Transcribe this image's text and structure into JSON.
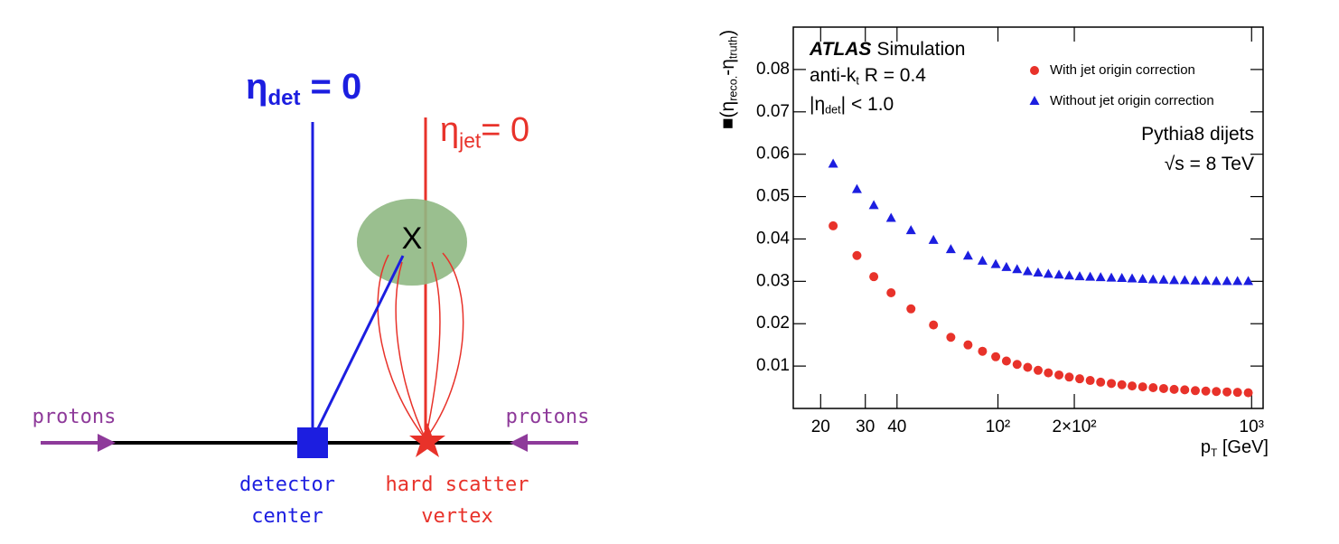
{
  "diagram": {
    "eta_det": [
      "η",
      "det",
      " = 0"
    ],
    "eta_jet": [
      "η",
      "jet",
      "= 0"
    ],
    "jet_marker": "X",
    "protons_left": "protons",
    "protons_right": "protons",
    "detector_center": [
      "detector",
      "center"
    ],
    "hard_scatter_vertex": [
      "hard scatter",
      "vertex"
    ]
  },
  "chart_data": {
    "type": "scatter",
    "experiment": "ATLAS",
    "experiment_label": "Simulation",
    "annotations": [
      [
        "anti-k",
        "t",
        " R = 0.4"
      ],
      [
        "|η",
        "det",
        "| < 1.0"
      ],
      [
        "Pythia8 dijets"
      ],
      [
        "√s = 8 TeV"
      ]
    ],
    "xlabel": [
      "p",
      "T",
      " [GeV]"
    ],
    "ylabel": [
      "■(η",
      "reco.",
      "-η",
      "truth",
      ")"
    ],
    "x": [
      22.4,
      27.8,
      32.4,
      37.9,
      45.4,
      55.7,
      65.2,
      76.2,
      86.9,
      98,
      108,
      119,
      131,
      144,
      158,
      174,
      191,
      210,
      231,
      254,
      280,
      308,
      338,
      372,
      409,
      450,
      495,
      545,
      600,
      660,
      726,
      800,
      880,
      970
    ],
    "series": [
      {
        "name": "With jet origin correction",
        "color": "#e8322a",
        "marker": "circle",
        "values": [
          0.0431,
          0.0361,
          0.0311,
          0.0273,
          0.0235,
          0.0197,
          0.0168,
          0.015,
          0.0135,
          0.0122,
          0.0112,
          0.0104,
          0.0097,
          0.009,
          0.0084,
          0.0079,
          0.0074,
          0.007,
          0.0066,
          0.0062,
          0.0059,
          0.0056,
          0.0053,
          0.0051,
          0.0049,
          0.0047,
          0.0045,
          0.0044,
          0.0042,
          0.0041,
          0.004,
          0.0039,
          0.0038,
          0.0037
        ]
      },
      {
        "name": "Without jet origin correction",
        "color": "#1c1ee0",
        "marker": "triangle",
        "values": [
          0.0577,
          0.0517,
          0.0479,
          0.0449,
          0.042,
          0.0397,
          0.0375,
          0.036,
          0.0348,
          0.034,
          0.0333,
          0.0328,
          0.0323,
          0.032,
          0.0317,
          0.0315,
          0.0313,
          0.0311,
          0.031,
          0.0309,
          0.0308,
          0.0307,
          0.0306,
          0.0305,
          0.0304,
          0.0303,
          0.0302,
          0.0302,
          0.0301,
          0.0301,
          0.03,
          0.03,
          0.03,
          0.03
        ]
      }
    ],
    "xscale": "log",
    "xlim": [
      15.6,
      1110
    ],
    "ylim": [
      0,
      0.09
    ],
    "xticks": [
      20,
      30,
      40,
      {
        "value": 100,
        "label": "10²"
      },
      {
        "value": 200,
        "label": "2×10²"
      },
      {
        "value": 1000,
        "label": "10³"
      }
    ],
    "yticks": [
      0.01,
      0.02,
      0.03,
      0.04,
      0.05,
      0.06,
      0.07,
      0.08
    ],
    "legend": "upper right"
  }
}
